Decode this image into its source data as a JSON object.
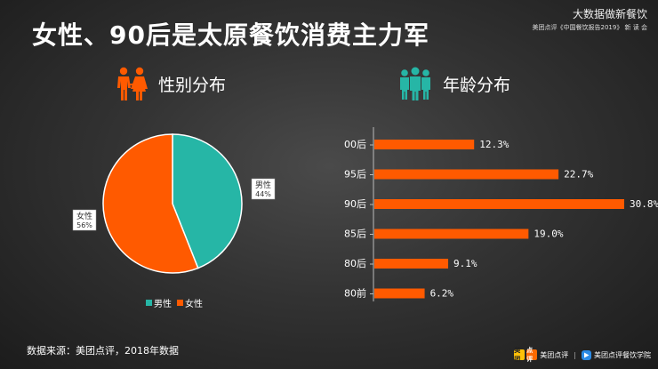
{
  "title": "女性、90后是太原餐饮消费主力军",
  "brand": {
    "line1": "大数据做新餐饮",
    "line2": "美团点评《中国餐饮报告2019》 新 读 会"
  },
  "gender_section": {
    "label": "性别分布",
    "icon": "couple-icon",
    "icon_color": "#ff5a00"
  },
  "age_section": {
    "label": "年龄分布",
    "icon": "group-icon",
    "icon_color": "#26b6a6"
  },
  "legend": {
    "male": "男性",
    "female": "女性"
  },
  "source": "数据来源：美团点评，2018年数据",
  "footer": {
    "app1": "美团点评",
    "app2": "美团点评餐饮学院",
    "logo1": "美团",
    "logo2": "点评"
  },
  "colors": {
    "male": "#26b6a6",
    "female": "#ff5a00",
    "bar": "#ff5a00"
  },
  "chart_data": [
    {
      "type": "pie",
      "slices": [
        {
          "name": "男性",
          "value": 44,
          "label": "44%",
          "color": "#26b6a6"
        },
        {
          "name": "女性",
          "value": 56,
          "label": "56%",
          "color": "#ff5a00"
        }
      ]
    },
    {
      "type": "bar",
      "orientation": "horizontal",
      "categories": [
        "00后",
        "95后",
        "90后",
        "85后",
        "80后",
        "80前"
      ],
      "values": [
        12.3,
        22.7,
        30.8,
        19.0,
        9.1,
        6.2
      ],
      "value_labels": [
        "12.3%",
        "22.7%",
        "30.8%",
        "19.0%",
        "9.1%",
        "6.2%"
      ],
      "color": "#ff5a00"
    }
  ]
}
